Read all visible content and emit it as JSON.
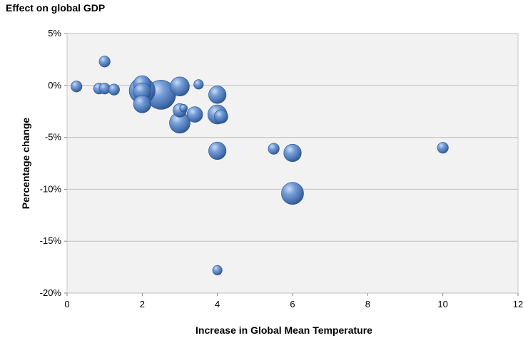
{
  "chart_data": {
    "type": "scatter",
    "subtype": "bubble",
    "title": "Effect on global GDP",
    "xlabel": "Increase in Global Mean Temperature",
    "ylabel": "Percentage change",
    "xlim": [
      0,
      12
    ],
    "ylim": [
      -20,
      5
    ],
    "xticks": [
      0,
      2,
      4,
      6,
      8,
      10,
      12
    ],
    "yticks": [
      5,
      0,
      -5,
      -10,
      -15,
      -20
    ],
    "ytick_labels": [
      "5%",
      "0%",
      "-5%",
      "-10%",
      "-15%",
      "-20%"
    ],
    "grid": "horizontal",
    "legend": "none",
    "bubble_color": "#4a7ac0",
    "plot_background": "#f2f2f2",
    "points": [
      {
        "x": 0.25,
        "y": -0.1,
        "size": 2
      },
      {
        "x": 0.85,
        "y": -0.3,
        "size": 2
      },
      {
        "x": 1.0,
        "y": 2.3,
        "size": 2
      },
      {
        "x": 1.0,
        "y": -0.3,
        "size": 2
      },
      {
        "x": 1.25,
        "y": -0.4,
        "size": 2
      },
      {
        "x": 2.0,
        "y": 0.1,
        "size": 5
      },
      {
        "x": 2.0,
        "y": -0.6,
        "size": 5
      },
      {
        "x": 2.0,
        "y": -1.8,
        "size": 5
      },
      {
        "x": 2.0,
        "y": -0.5,
        "size": 11
      },
      {
        "x": 2.5,
        "y": -0.9,
        "size": 14
      },
      {
        "x": 3.0,
        "y": -0.1,
        "size": 6
      },
      {
        "x": 3.0,
        "y": -2.4,
        "size": 3
      },
      {
        "x": 3.0,
        "y": -3.6,
        "size": 7
      },
      {
        "x": 3.1,
        "y": -2.2,
        "size": 1
      },
      {
        "x": 3.4,
        "y": -2.8,
        "size": 4
      },
      {
        "x": 3.5,
        "y": 0.1,
        "size": 1.5
      },
      {
        "x": 4.0,
        "y": -0.9,
        "size": 5
      },
      {
        "x": 4.0,
        "y": -2.8,
        "size": 6
      },
      {
        "x": 4.1,
        "y": -3.0,
        "size": 3
      },
      {
        "x": 4.0,
        "y": -6.3,
        "size": 5
      },
      {
        "x": 4.0,
        "y": -17.8,
        "size": 1.5
      },
      {
        "x": 5.5,
        "y": -6.1,
        "size": 2
      },
      {
        "x": 6.0,
        "y": -6.5,
        "size": 5
      },
      {
        "x": 6.0,
        "y": -10.4,
        "size": 8
      },
      {
        "x": 10.0,
        "y": -6.0,
        "size": 2
      }
    ]
  }
}
